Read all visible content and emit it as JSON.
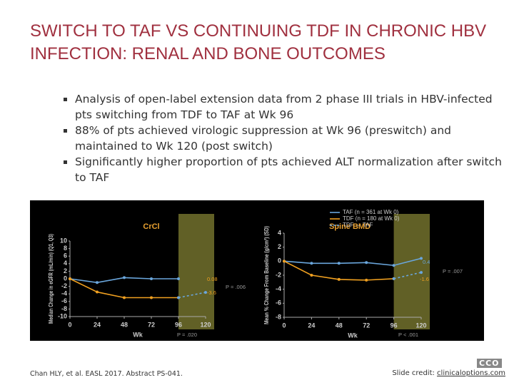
{
  "slide": {
    "title": "SWITCH TO TAF VS CONTINUING TDF IN CHRONIC HBV INFECTION: RENAL AND BONE OUTCOMES",
    "bullets": [
      "Analysis of open-label extension data from 2 phase III trials in HBV-infected pts switching from TDF to TAF at Wk 96",
      "88% of pts achieved virologic suppression at Wk 96 (preswitch) and maintained to Wk 120 (post switch)",
      "Significantly higher proportion of pts achieved ALT normalization after switch to TAF"
    ],
    "citation": "Chan HLY, et al. EASL 2017. Abstract PS-041.",
    "credit_label": "Slide credit:",
    "credit_link": "clinicaloptions.com",
    "logo": "CCO"
  },
  "chart_data": [
    {
      "type": "line",
      "title": "CrCl",
      "x_label": "Wk",
      "y_label": "Median Change in eGFR (mL/min) (Q1, Q3)",
      "x": [
        0,
        24,
        48,
        72,
        96,
        120
      ],
      "xlim": [
        0,
        120
      ],
      "xticks": [
        0,
        24,
        48,
        72,
        96,
        120
      ],
      "ylim": [
        -10,
        10
      ],
      "yticks": [
        -10,
        -8,
        -6,
        -4,
        -2,
        0,
        2,
        4,
        6,
        8,
        10
      ],
      "series": [
        {
          "color": "#6aa6dc",
          "values": [
            0,
            -1,
            0.3,
            0,
            0,
            null
          ]
        },
        {
          "color": "#f0a020",
          "values": [
            0,
            -3.5,
            -5,
            -5,
            -5,
            null
          ]
        },
        {
          "color": "#6aa6dc",
          "line_style": "dashed",
          "values": [
            null,
            null,
            null,
            null,
            -5,
            -3.6
          ]
        }
      ],
      "annotations": [
        "0.08",
        "-3.6",
        "P = .006",
        "P = .020"
      ]
    },
    {
      "type": "line",
      "title": "Spine BMD",
      "x_label": "Wk",
      "y_label": "Mean % Change From Baseline (g/cm²) (SD)",
      "x": [
        0,
        24,
        48,
        72,
        96,
        120
      ],
      "xlim": [
        0,
        120
      ],
      "xticks": [
        0,
        24,
        48,
        72,
        96,
        120
      ],
      "ylim": [
        -8,
        4
      ],
      "yticks": [
        -8,
        -6,
        -4,
        -2,
        0,
        2,
        4
      ],
      "legend": "top-right",
      "series": [
        {
          "name": "TAF (n = 361 at Wk 0)",
          "color": "#6aa6dc",
          "values": [
            0,
            -0.3,
            -0.3,
            -0.2,
            -0.6,
            0.4
          ]
        },
        {
          "name": "TDF (n = 180 at Wk 0)",
          "color": "#f0a020",
          "values": [
            0,
            -2,
            -2.6,
            -2.7,
            -2.5,
            null
          ]
        },
        {
          "name": "TDF → TAF",
          "color": "#6aa6dc",
          "line_style": "dashed",
          "values": [
            null,
            null,
            null,
            null,
            -2.5,
            -1.6
          ]
        }
      ],
      "annotations": [
        "0.4",
        "-1.6",
        "P = .007",
        "P < .001"
      ]
    }
  ]
}
